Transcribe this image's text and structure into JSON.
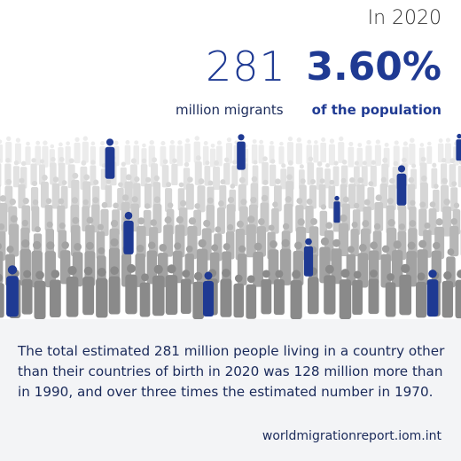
{
  "header": {
    "year": "In 2020",
    "count": "281",
    "count_label": "million migrants",
    "share": "3.60%",
    "share_label": "of the population"
  },
  "body": {
    "text": "The total estimated 281 million people living in a country other than their countries of birth in 2020 was 128 million more than in 1990, and over three times the estimated number in 1970."
  },
  "footer": {
    "url": "worldmigrationreport.iom.int"
  }
}
